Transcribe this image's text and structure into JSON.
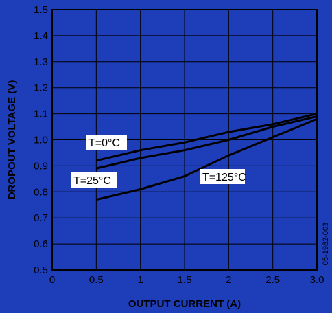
{
  "chart_data": {
    "type": "line",
    "title": "",
    "xlabel": "OUTPUT CURRENT (A)",
    "ylabel": "DROPOUT VOLTAGE (V)",
    "xlim": [
      0,
      3.0
    ],
    "ylim": [
      0.5,
      1.5
    ],
    "xticks": [
      "0",
      "0.5",
      "1",
      "1.5",
      "2",
      "2.5",
      "3.0"
    ],
    "yticks": [
      "0.5",
      "0.6",
      "0.7",
      "0.8",
      "0.9",
      "1.0",
      "1.1",
      "1.2",
      "1.3",
      "1.4",
      "1.5"
    ],
    "grid": true,
    "series": [
      {
        "name": "T=0°C",
        "x": [
          0.5,
          1.0,
          1.5,
          2.0,
          2.5,
          3.0
        ],
        "y": [
          0.92,
          0.96,
          0.99,
          1.03,
          1.06,
          1.1
        ]
      },
      {
        "name": "T=25°C",
        "x": [
          0.5,
          1.0,
          1.5,
          2.0,
          2.5,
          3.0
        ],
        "y": [
          0.89,
          0.93,
          0.96,
          1.0,
          1.05,
          1.09
        ]
      },
      {
        "name": "T=125°C",
        "x": [
          0.5,
          1.0,
          1.5,
          2.0,
          2.5,
          3.0
        ],
        "y": [
          0.77,
          0.81,
          0.86,
          0.94,
          1.01,
          1.08
        ]
      }
    ],
    "watermark": "05-1982-003",
    "colors": {
      "background": "#1e3db8",
      "plot": "#1e3db8",
      "line": "#000000",
      "grid": "#000000",
      "text": "#000000",
      "label_box": "#ffffff"
    }
  }
}
